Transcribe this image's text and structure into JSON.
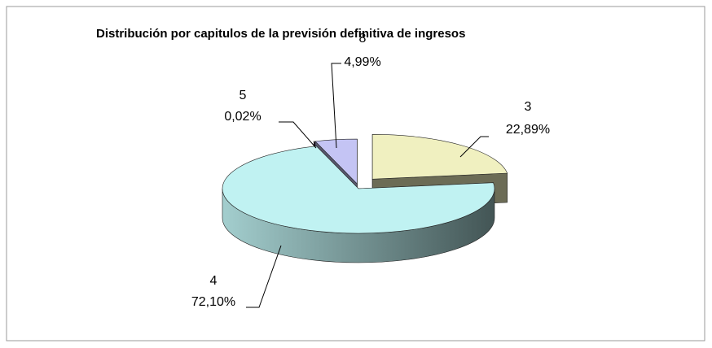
{
  "chart_data": {
    "type": "pie3d",
    "title": "Distribución por capitulos de la previsión definitiva de ingresos",
    "categories": [
      "3",
      "4",
      "5",
      "8"
    ],
    "values": [
      22.89,
      72.1,
      0.02,
      4.99
    ],
    "value_labels": [
      "22,89%",
      "72,10%",
      "0,02%",
      "4,99%"
    ],
    "colors": [
      "#f0f0c0",
      "#c0f2f2",
      "#3a0a3a",
      "#c4c4f4"
    ]
  }
}
